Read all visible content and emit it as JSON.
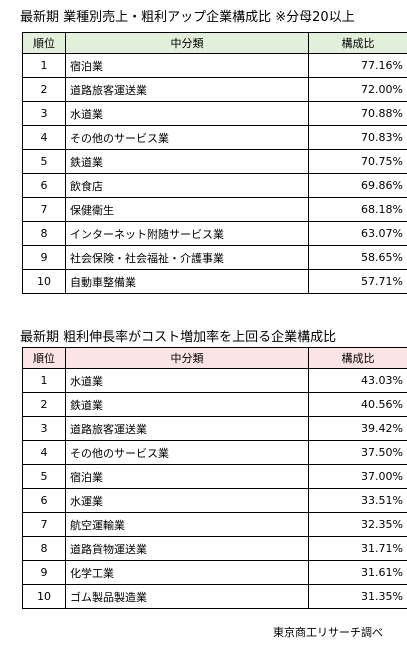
{
  "tables": [
    {
      "title": "最新期 業種別売上・粗利アップ企業構成比 ※分母20以上",
      "header": [
        "順位",
        "中分類",
        "構成比"
      ],
      "rows": [
        [
          "1",
          "宿泊業",
          "77.16%"
        ],
        [
          "2",
          "道路旅客運送業",
          "72.00%"
        ],
        [
          "3",
          "水道業",
          "70.88%"
        ],
        [
          "4",
          "その他のサービス業",
          "70.83%"
        ],
        [
          "5",
          "鉄道業",
          "70.75%"
        ],
        [
          "6",
          "飲食店",
          "69.86%"
        ],
        [
          "7",
          "保健衛生",
          "68.18%"
        ],
        [
          "8",
          "インターネット附随サービス業",
          "63.07%"
        ],
        [
          "9",
          "社会保険・社会福祉・介護事業",
          "58.65%"
        ],
        [
          "10",
          "自動車整備業",
          "57.71%"
        ]
      ]
    },
    {
      "title": "最新期 粗利伸長率がコスト増加率を上回る企業構成比",
      "header": [
        "順位",
        "中分類",
        "構成比"
      ],
      "rows": [
        [
          "1",
          "水道業",
          "43.03%"
        ],
        [
          "2",
          "鉄道業",
          "40.56%"
        ],
        [
          "3",
          "道路旅客運送業",
          "39.42%"
        ],
        [
          "4",
          "その他のサービス業",
          "37.50%"
        ],
        [
          "5",
          "宿泊業",
          "37.00%"
        ],
        [
          "6",
          "水運業",
          "33.51%"
        ],
        [
          "7",
          "航空運輸業",
          "32.35%"
        ],
        [
          "8",
          "道路貨物運送業",
          "31.71%"
        ],
        [
          "9",
          "化学工業",
          "31.61%"
        ],
        [
          "10",
          "ゴム製品製造業",
          "31.35%"
        ]
      ]
    }
  ],
  "footer": "東京商工リサーチ調べ"
}
